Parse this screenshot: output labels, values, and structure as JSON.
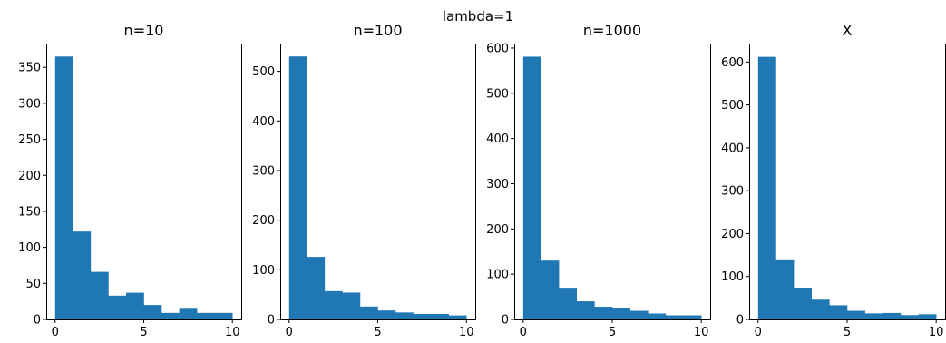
{
  "figure": {
    "suptitle": "lambda=1"
  },
  "chart_data": [
    {
      "type": "bar",
      "title": "n=10",
      "xlabel": "",
      "ylabel": "",
      "bin_edges": [
        0,
        1,
        2,
        3,
        4,
        5,
        6,
        7,
        8,
        9,
        10
      ],
      "values": [
        365,
        122,
        66,
        33,
        37,
        20,
        9,
        16,
        9,
        9
      ],
      "xlim": [
        -0.5,
        10.5
      ],
      "ylim": [
        0,
        383
      ],
      "xticks": [
        0,
        5,
        10
      ],
      "yticks": [
        0,
        50,
        100,
        150,
        200,
        250,
        300,
        350
      ],
      "color": "#1f77b4",
      "grid": false
    },
    {
      "type": "bar",
      "title": "n=100",
      "xlabel": "",
      "ylabel": "",
      "bin_edges": [
        0,
        1,
        2,
        3,
        4,
        5,
        6,
        7,
        8,
        9,
        10
      ],
      "values": [
        530,
        126,
        57,
        54,
        26,
        18,
        14,
        11,
        11,
        8
      ],
      "xlim": [
        -0.5,
        10.5
      ],
      "ylim": [
        0,
        556
      ],
      "xticks": [
        0,
        5,
        10
      ],
      "yticks": [
        0,
        100,
        200,
        300,
        400,
        500
      ],
      "color": "#1f77b4",
      "grid": false
    },
    {
      "type": "bar",
      "title": "n=1000",
      "xlabel": "",
      "ylabel": "",
      "bin_edges": [
        0,
        1,
        2,
        3,
        4,
        5,
        6,
        7,
        8,
        9,
        10
      ],
      "values": [
        581,
        130,
        70,
        40,
        28,
        26,
        19,
        13,
        9,
        9
      ],
      "xlim": [
        -0.5,
        10.5
      ],
      "ylim": [
        0,
        610
      ],
      "xticks": [
        0,
        5,
        10
      ],
      "yticks": [
        0,
        100,
        200,
        300,
        400,
        500,
        600
      ],
      "color": "#1f77b4",
      "grid": false
    },
    {
      "type": "bar",
      "title": "X",
      "xlabel": "",
      "ylabel": "",
      "bin_edges": [
        0,
        1,
        2,
        3,
        4,
        5,
        6,
        7,
        8,
        9,
        10
      ],
      "values": [
        612,
        140,
        74,
        46,
        33,
        20,
        14,
        15,
        10,
        12
      ],
      "xlim": [
        -0.5,
        10.5
      ],
      "ylim": [
        0,
        643
      ],
      "xticks": [
        0,
        5,
        10
      ],
      "yticks": [
        0,
        100,
        200,
        300,
        400,
        500,
        600
      ],
      "color": "#1f77b4",
      "grid": false
    }
  ]
}
